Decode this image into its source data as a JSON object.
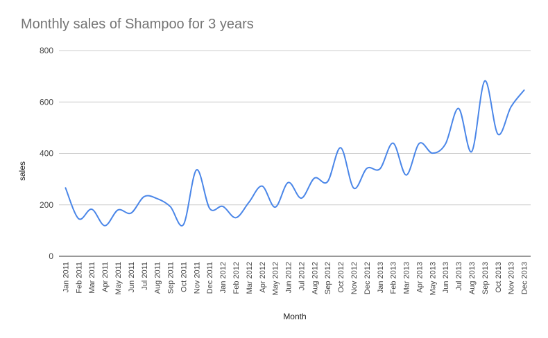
{
  "chart_data": {
    "type": "line",
    "title": "Monthly sales of Shampoo for 3 years",
    "xlabel": "Month",
    "ylabel": "sales",
    "ylim": [
      0,
      800
    ],
    "yticks": [
      "0",
      "200",
      "400",
      "600",
      "800"
    ],
    "grid": true,
    "legend": "none",
    "categories": [
      "Jan 2011",
      "Feb 2011",
      "Mar 2011",
      "Apr 2011",
      "May 2011",
      "Jun 2011",
      "Jul 2011",
      "Aug 2011",
      "Sep 2011",
      "Oct 2011",
      "Nov 2011",
      "Dec 2011",
      "Jan 2012",
      "Feb 2012",
      "Mar 2012",
      "Apr 2012",
      "May 2012",
      "Jun 2012",
      "Jul 2012",
      "Aug 2012",
      "Sep 2012",
      "Oct 2012",
      "Nov 2012",
      "Dec 2012",
      "Jan 2013",
      "Feb 2013",
      "Mar 2013",
      "Apr 2013",
      "May 2013",
      "Jun 2013",
      "Jul 2013",
      "Aug 2013",
      "Sep 2013",
      "Oct 2013",
      "Nov 2013",
      "Dec 2013"
    ],
    "series": [
      {
        "color": "#4a86e8",
        "values": [
          266,
          146,
          183,
          119,
          180,
          168,
          232,
          224,
          193,
          123,
          336,
          186,
          194,
          150,
          210,
          273,
          191,
          287,
          226,
          304,
          290,
          422,
          265,
          342,
          340,
          440,
          316,
          439,
          401,
          437,
          575,
          407,
          682,
          475,
          581,
          646
        ]
      }
    ]
  }
}
